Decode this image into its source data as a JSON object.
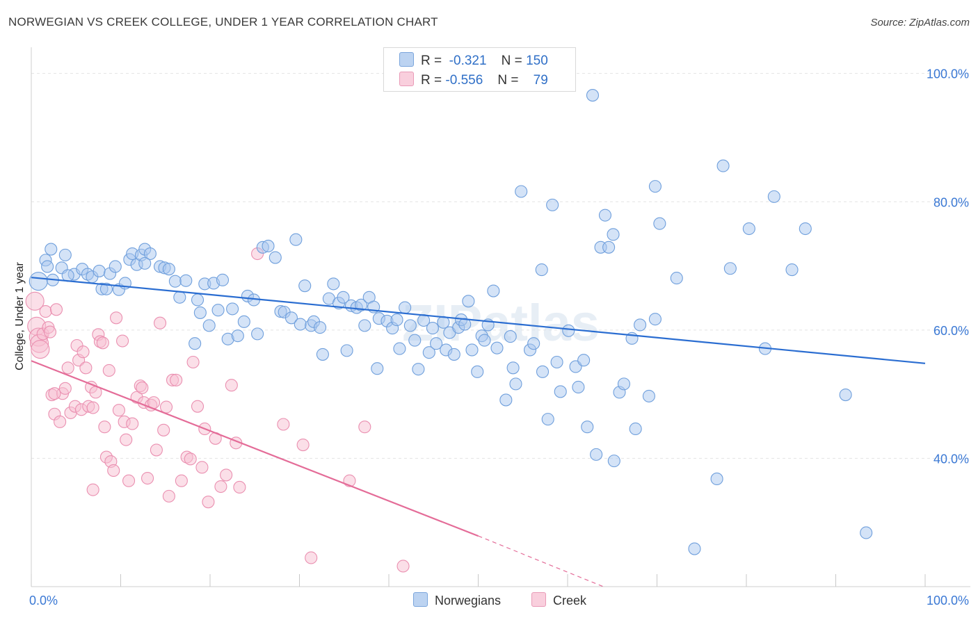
{
  "title": "NORWEGIAN VS CREEK COLLEGE, UNDER 1 YEAR CORRELATION CHART",
  "source": "Source: ZipAtlas.com",
  "watermark": "ZIPatlas",
  "legend": {
    "rows": [
      {
        "r_label": "R =",
        "r_value": "-0.321",
        "n_label": "N =",
        "n_value": "150"
      },
      {
        "r_label": "R =",
        "r_value": "-0.556",
        "n_label": "N =",
        "n_value": "79"
      }
    ]
  },
  "bottom_legend": [
    "Norwegians",
    "Creek"
  ],
  "colors": {
    "norwegians_fill": "#a9c8ef",
    "norwegians_stroke": "#6f9fdc",
    "norwegians_line": "#2a6dd1",
    "creek_fill": "#f7bfd1",
    "creek_stroke": "#ea8fb0",
    "creek_line": "#e46c98",
    "tick_label": "#3a78d4",
    "grid": "#e3e3e3"
  },
  "chart_data": {
    "type": "scatter",
    "xlabel": "",
    "ylabel": "College, Under 1 year",
    "xlim": [
      0,
      100
    ],
    "ylim": [
      20,
      103
    ],
    "x_tick_labels": [
      "0.0%",
      "100.0%"
    ],
    "y_ticks": [
      40,
      60,
      80,
      100
    ],
    "y_tick_labels": [
      "40.0%",
      "60.0%",
      "80.0%",
      "100.0%"
    ],
    "grid": true,
    "legend_placement": "top-center",
    "series": [
      {
        "name": "Norwegians",
        "trend": {
          "x": [
            0,
            100
          ],
          "y": [
            68.2,
            54.8
          ]
        },
        "points": [
          [
            0.8,
            67.6
          ],
          [
            1.6,
            70.9
          ],
          [
            1.8,
            69.9
          ],
          [
            2.2,
            72.6
          ],
          [
            3.4,
            69.7
          ],
          [
            3.8,
            71.7
          ],
          [
            4.8,
            68.7
          ],
          [
            5.7,
            69.5
          ],
          [
            6.3,
            68.7
          ],
          [
            6.8,
            68.3
          ],
          [
            7.6,
            69.2
          ],
          [
            7.9,
            66.4
          ],
          [
            8.4,
            66.4
          ],
          [
            8.8,
            68.8
          ],
          [
            9.4,
            69.9
          ],
          [
            9.8,
            66.3
          ],
          [
            10.5,
            67.3
          ],
          [
            11.0,
            71.0
          ],
          [
            11.3,
            71.9
          ],
          [
            11.8,
            70.2
          ],
          [
            12.3,
            71.7
          ],
          [
            12.7,
            72.6
          ],
          [
            13.3,
            71.9
          ],
          [
            14.4,
            69.9
          ],
          [
            14.9,
            69.7
          ],
          [
            15.4,
            69.5
          ],
          [
            16.1,
            67.6
          ],
          [
            16.6,
            65.1
          ],
          [
            17.3,
            67.7
          ],
          [
            18.3,
            57.9
          ],
          [
            18.6,
            64.7
          ],
          [
            18.9,
            62.7
          ],
          [
            19.4,
            67.2
          ],
          [
            19.9,
            60.7
          ],
          [
            20.4,
            67.3
          ],
          [
            20.9,
            63.1
          ],
          [
            21.4,
            67.8
          ],
          [
            22.0,
            58.6
          ],
          [
            22.5,
            63.3
          ],
          [
            23.1,
            59.1
          ],
          [
            23.8,
            61.3
          ],
          [
            24.2,
            65.3
          ],
          [
            24.9,
            64.7
          ],
          [
            25.3,
            59.4
          ],
          [
            25.9,
            72.9
          ],
          [
            26.5,
            73.1
          ],
          [
            27.3,
            71.3
          ],
          [
            27.9,
            62.9
          ],
          [
            28.3,
            62.8
          ],
          [
            29.1,
            61.9
          ],
          [
            29.6,
            74.1
          ],
          [
            30.1,
            60.9
          ],
          [
            30.6,
            66.9
          ],
          [
            31.3,
            60.7
          ],
          [
            31.6,
            61.3
          ],
          [
            32.3,
            60.4
          ],
          [
            32.6,
            56.2
          ],
          [
            33.3,
            64.9
          ],
          [
            33.8,
            67.2
          ],
          [
            34.4,
            64.2
          ],
          [
            34.9,
            65.1
          ],
          [
            35.3,
            56.8
          ],
          [
            35.8,
            63.8
          ],
          [
            36.4,
            63.5
          ],
          [
            36.9,
            63.9
          ],
          [
            37.3,
            60.7
          ],
          [
            37.8,
            65.1
          ],
          [
            38.3,
            63.6
          ],
          [
            38.7,
            54.0
          ],
          [
            38.9,
            61.8
          ],
          [
            39.8,
            61.4
          ],
          [
            40.4,
            60.3
          ],
          [
            40.9,
            61.6
          ],
          [
            41.2,
            57.1
          ],
          [
            41.8,
            63.5
          ],
          [
            42.4,
            60.7
          ],
          [
            42.9,
            58.4
          ],
          [
            43.3,
            53.9
          ],
          [
            43.9,
            61.5
          ],
          [
            44.5,
            56.5
          ],
          [
            44.9,
            60.3
          ],
          [
            45.3,
            57.9
          ],
          [
            46.1,
            61.2
          ],
          [
            46.4,
            56.9
          ],
          [
            46.8,
            59.6
          ],
          [
            47.3,
            56.2
          ],
          [
            47.8,
            60.4
          ],
          [
            48.1,
            61.6
          ],
          [
            48.5,
            60.9
          ],
          [
            48.9,
            64.5
          ],
          [
            49.3,
            56.9
          ],
          [
            49.9,
            53.5
          ],
          [
            50.4,
            59.1
          ],
          [
            50.7,
            58.4
          ],
          [
            51.1,
            60.8
          ],
          [
            51.7,
            66.1
          ],
          [
            52.1,
            57.2
          ],
          [
            53.1,
            49.1
          ],
          [
            53.6,
            59.0
          ],
          [
            53.9,
            54.1
          ],
          [
            54.2,
            51.6
          ],
          [
            54.8,
            81.6
          ],
          [
            55.8,
            56.9
          ],
          [
            56.2,
            57.9
          ],
          [
            57.1,
            69.4
          ],
          [
            57.2,
            53.5
          ],
          [
            57.8,
            46.1
          ],
          [
            58.3,
            79.5
          ],
          [
            58.8,
            55.0
          ],
          [
            59.2,
            50.4
          ],
          [
            60.1,
            59.9
          ],
          [
            60.9,
            54.3
          ],
          [
            61.2,
            51.1
          ],
          [
            61.8,
            55.3
          ],
          [
            62.2,
            44.9
          ],
          [
            62.8,
            96.6
          ],
          [
            63.2,
            40.6
          ],
          [
            63.7,
            72.9
          ],
          [
            64.2,
            77.9
          ],
          [
            64.6,
            72.9
          ],
          [
            65.1,
            74.9
          ],
          [
            65.2,
            39.6
          ],
          [
            65.8,
            50.3
          ],
          [
            66.3,
            51.6
          ],
          [
            67.2,
            58.7
          ],
          [
            67.6,
            44.6
          ],
          [
            68.1,
            60.8
          ],
          [
            69.1,
            49.7
          ],
          [
            69.8,
            61.7
          ],
          [
            69.8,
            82.4
          ],
          [
            70.3,
            76.6
          ],
          [
            72.2,
            68.1
          ],
          [
            74.2,
            25.9
          ],
          [
            76.7,
            36.8
          ],
          [
            77.4,
            85.6
          ],
          [
            78.2,
            69.6
          ],
          [
            80.3,
            75.8
          ],
          [
            82.1,
            57.1
          ],
          [
            83.1,
            80.8
          ],
          [
            85.1,
            69.4
          ],
          [
            86.6,
            75.8
          ],
          [
            91.1,
            49.9
          ],
          [
            93.4,
            28.4
          ],
          [
            2.4,
            67.8
          ],
          [
            4.1,
            68.5
          ],
          [
            12.7,
            70.4
          ]
        ]
      },
      {
        "name": "Creek",
        "trend": {
          "x": [
            0,
            50
          ],
          "y": [
            55.2,
            27.9
          ]
        },
        "trend_dashed": {
          "x": [
            50,
            64
          ],
          "y": [
            27.9,
            20.0
          ]
        },
        "points": [
          [
            0.4,
            64.5
          ],
          [
            0.6,
            60.6
          ],
          [
            0.8,
            58.9
          ],
          [
            0.9,
            57.9
          ],
          [
            1.0,
            57.0
          ],
          [
            1.3,
            59.4
          ],
          [
            1.6,
            62.9
          ],
          [
            1.9,
            60.4
          ],
          [
            2.1,
            59.7
          ],
          [
            2.3,
            49.9
          ],
          [
            2.6,
            46.9
          ],
          [
            2.8,
            63.2
          ],
          [
            3.2,
            45.7
          ],
          [
            3.5,
            50.1
          ],
          [
            3.8,
            50.9
          ],
          [
            4.1,
            54.1
          ],
          [
            4.4,
            47.1
          ],
          [
            4.9,
            48.1
          ],
          [
            5.1,
            57.6
          ],
          [
            5.3,
            55.3
          ],
          [
            5.6,
            47.6
          ],
          [
            5.8,
            56.6
          ],
          [
            6.1,
            54.1
          ],
          [
            6.4,
            48.1
          ],
          [
            6.7,
            51.1
          ],
          [
            6.9,
            47.9
          ],
          [
            7.2,
            50.3
          ],
          [
            7.5,
            59.3
          ],
          [
            7.7,
            58.2
          ],
          [
            8.0,
            58.0
          ],
          [
            8.2,
            44.9
          ],
          [
            8.4,
            40.2
          ],
          [
            8.7,
            53.7
          ],
          [
            8.9,
            39.5
          ],
          [
            9.2,
            38.1
          ],
          [
            9.5,
            61.9
          ],
          [
            9.8,
            47.5
          ],
          [
            10.2,
            58.3
          ],
          [
            10.4,
            45.7
          ],
          [
            10.6,
            42.9
          ],
          [
            10.9,
            36.5
          ],
          [
            11.3,
            45.4
          ],
          [
            11.8,
            49.5
          ],
          [
            12.2,
            51.3
          ],
          [
            12.4,
            51.0
          ],
          [
            12.6,
            48.7
          ],
          [
            13.0,
            36.9
          ],
          [
            13.4,
            48.3
          ],
          [
            13.7,
            48.7
          ],
          [
            14.0,
            41.3
          ],
          [
            14.4,
            61.1
          ],
          [
            14.8,
            44.4
          ],
          [
            15.1,
            48.0
          ],
          [
            15.4,
            34.1
          ],
          [
            15.8,
            52.2
          ],
          [
            16.2,
            52.2
          ],
          [
            16.8,
            36.5
          ],
          [
            17.4,
            40.2
          ],
          [
            17.8,
            39.9
          ],
          [
            18.1,
            55.0
          ],
          [
            18.6,
            48.1
          ],
          [
            19.1,
            38.6
          ],
          [
            19.4,
            44.6
          ],
          [
            19.8,
            33.2
          ],
          [
            20.6,
            43.1
          ],
          [
            21.2,
            35.6
          ],
          [
            21.8,
            37.4
          ],
          [
            22.4,
            51.4
          ],
          [
            22.9,
            42.4
          ],
          [
            23.3,
            35.5
          ],
          [
            25.3,
            71.9
          ],
          [
            28.2,
            45.3
          ],
          [
            30.4,
            42.1
          ],
          [
            31.3,
            24.5
          ],
          [
            35.6,
            36.5
          ],
          [
            37.3,
            44.9
          ],
          [
            41.6,
            23.2
          ],
          [
            2.6,
            50.1
          ],
          [
            6.9,
            35.1
          ]
        ]
      }
    ]
  }
}
